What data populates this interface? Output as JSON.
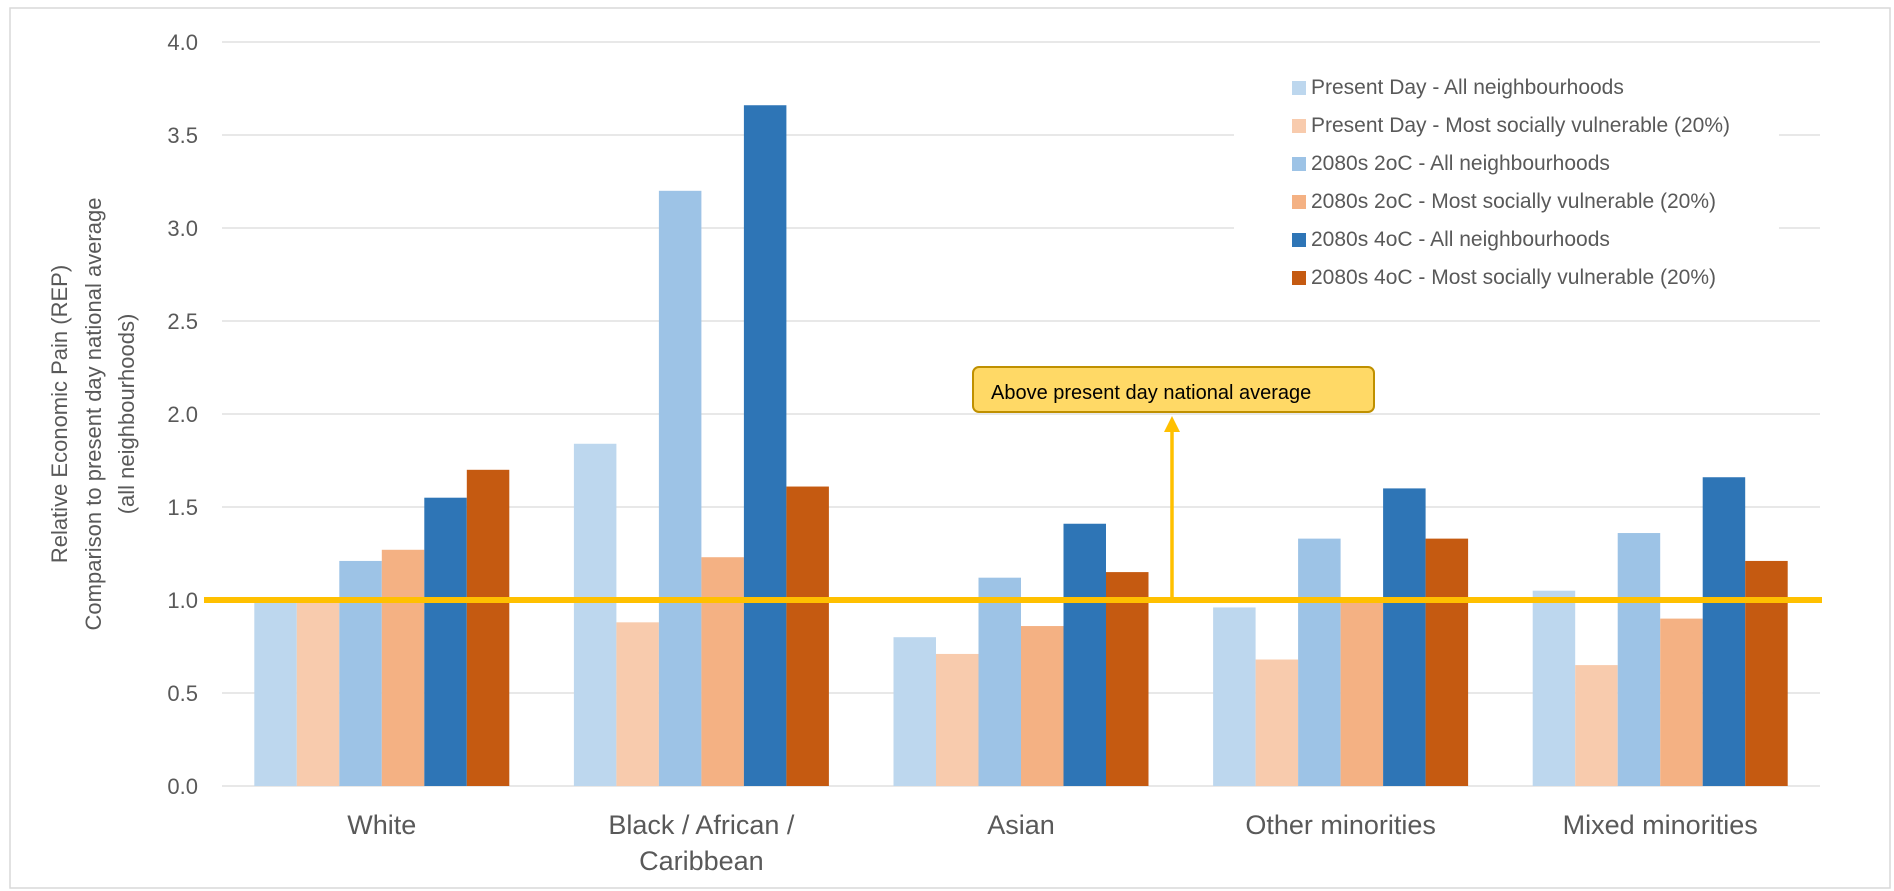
{
  "chart_data": {
    "type": "bar",
    "title": "",
    "ylabel_lines": [
      "Relative Economic Pain (REP)",
      "Comparison to present day national average",
      "(all neighbourhoods)"
    ],
    "xlabel": "",
    "ylim": [
      0,
      4.0
    ],
    "yticks": [
      "0.0",
      "0.5",
      "1.0",
      "1.5",
      "2.0",
      "2.5",
      "3.0",
      "3.5",
      "4.0"
    ],
    "grid": true,
    "legend_position": "top-right",
    "categories": [
      {
        "lines": [
          "White"
        ]
      },
      {
        "lines": [
          "Black / African /",
          "Caribbean"
        ]
      },
      {
        "lines": [
          "Asian"
        ]
      },
      {
        "lines": [
          "Other minorities"
        ]
      },
      {
        "lines": [
          "Mixed minorities"
        ]
      }
    ],
    "series": [
      {
        "name": "Present Day - All neighbourhoods",
        "color": "#BDD7EE",
        "values": [
          0.99,
          1.84,
          0.8,
          0.96,
          1.05
        ]
      },
      {
        "name": "Present Day - Most socially vulnerable (20%)",
        "color": "#F8CBAD",
        "values": [
          0.99,
          0.88,
          0.71,
          0.68,
          0.65
        ]
      },
      {
        "name": "2080s 2oC - All neighbourhoods",
        "color": "#9DC3E6",
        "values": [
          1.21,
          3.2,
          1.12,
          1.33,
          1.36
        ]
      },
      {
        "name": "2080s 2oC - Most socially vulnerable (20%)",
        "color": "#F4B183",
        "values": [
          1.27,
          1.23,
          0.86,
          1.0,
          0.9
        ]
      },
      {
        "name": "2080s 4oC - All neighbourhoods",
        "color": "#2E75B6",
        "values": [
          1.55,
          3.66,
          1.41,
          1.6,
          1.66
        ]
      },
      {
        "name": "2080s 4oC - Most socially vulnerable (20%)",
        "color": "#C55A11",
        "values": [
          1.7,
          1.61,
          1.15,
          1.33,
          1.21
        ]
      }
    ],
    "reference_line": {
      "value": 1.0,
      "color": "#FFC000"
    },
    "annotation": {
      "text": "Above present day national average",
      "fill": "#FFD966",
      "border": "#BF9000",
      "arrow_color": "#FFC000"
    }
  }
}
